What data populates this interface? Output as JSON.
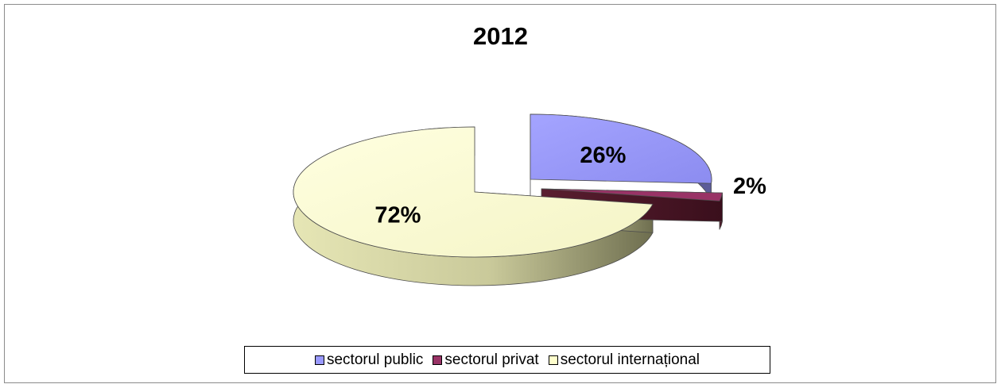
{
  "chart_data": {
    "type": "pie",
    "title": "2012",
    "categories": [
      "sectorul public",
      "sectorul privat",
      "sectorul internațional"
    ],
    "values": [
      26,
      2,
      72
    ],
    "labels": [
      "26%",
      "2%",
      "72%"
    ],
    "colors": [
      "#9999ff",
      "#993366",
      "#ffffcc"
    ],
    "exploded": true,
    "three_d": true,
    "legend_position": "bottom"
  }
}
